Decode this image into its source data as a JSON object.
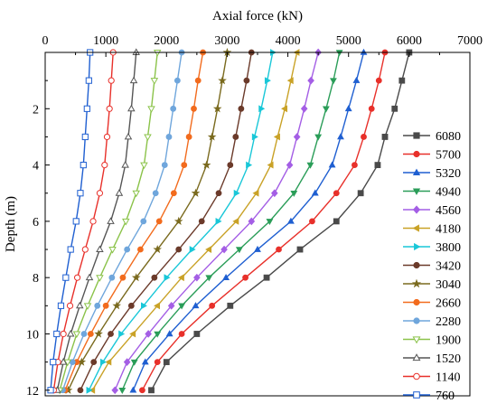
{
  "chart_data": {
    "type": "line",
    "xlabel": "Axial force (kN)",
    "ylabel": "Depth (m)",
    "xlim": [
      0,
      7000
    ],
    "ylim": [
      12.2,
      0
    ],
    "x_axis_position": "top",
    "y_inverted": true,
    "x_ticks": [
      0,
      1000,
      2000,
      3000,
      4000,
      5000,
      6000,
      7000
    ],
    "y_ticks": [
      2,
      4,
      6,
      8,
      10,
      12
    ],
    "depths": [
      0,
      1,
      2,
      3,
      4,
      5,
      6,
      7,
      8,
      9,
      10,
      11,
      12
    ],
    "grid": false,
    "legend_position": "right",
    "series": [
      {
        "name": "6080",
        "color": "#4a4a4a",
        "marker": "square",
        "filled": true,
        "x": [
          6000,
          5880,
          5760,
          5600,
          5480,
          5200,
          4800,
          4200,
          3650,
          3050,
          2500,
          2000,
          1750
        ]
      },
      {
        "name": "5700",
        "color": "#e8302a",
        "marker": "circle",
        "filled": true,
        "x": [
          5600,
          5500,
          5380,
          5250,
          5100,
          4800,
          4400,
          3850,
          3300,
          2750,
          2250,
          1850,
          1600
        ]
      },
      {
        "name": "5320",
        "color": "#1f5fd1",
        "marker": "triangle-up",
        "filled": true,
        "x": [
          5250,
          5130,
          5000,
          4870,
          4730,
          4450,
          4050,
          3500,
          2980,
          2480,
          2050,
          1650,
          1450
        ]
      },
      {
        "name": "4940",
        "color": "#2a9d58",
        "marker": "triangle-down",
        "filled": true,
        "x": [
          4850,
          4750,
          4630,
          4500,
          4370,
          4100,
          3700,
          3200,
          2700,
          2250,
          1850,
          1470,
          1270
        ]
      },
      {
        "name": "4560",
        "color": "#a45ee5",
        "marker": "diamond",
        "filled": true,
        "x": [
          4500,
          4380,
          4270,
          4150,
          4030,
          3780,
          3400,
          2950,
          2500,
          2080,
          1700,
          1350,
          1150
        ]
      },
      {
        "name": "4180",
        "color": "#c9a227",
        "marker": "triangle-left",
        "filled": true,
        "x": [
          4150,
          4050,
          3950,
          3830,
          3720,
          3480,
          3150,
          2700,
          2250,
          1850,
          1450,
          1050,
          780
        ]
      },
      {
        "name": "3800",
        "color": "#19c7d8",
        "marker": "triangle-right",
        "filled": true,
        "x": [
          3750,
          3660,
          3560,
          3450,
          3350,
          3150,
          2850,
          2420,
          2000,
          1620,
          1250,
          950,
          720
        ]
      },
      {
        "name": "3420",
        "color": "#6b3a2a",
        "marker": "circle",
        "filled": true,
        "x": [
          3400,
          3320,
          3230,
          3140,
          3050,
          2860,
          2580,
          2200,
          1800,
          1420,
          1080,
          800,
          580
        ]
      },
      {
        "name": "3040",
        "color": "#7a6a1e",
        "marker": "star",
        "filled": true,
        "x": [
          3000,
          2920,
          2840,
          2750,
          2660,
          2480,
          2200,
          1850,
          1500,
          1180,
          880,
          600,
          380
        ]
      },
      {
        "name": "2660",
        "color": "#f26b1d",
        "marker": "circle",
        "filled": true,
        "x": [
          2600,
          2520,
          2450,
          2370,
          2290,
          2120,
          1880,
          1570,
          1280,
          1000,
          750,
          520,
          330
        ]
      },
      {
        "name": "2280",
        "color": "#6fa6dc",
        "marker": "circle",
        "filled": true,
        "x": [
          2250,
          2180,
          2110,
          2040,
          1970,
          1820,
          1620,
          1350,
          1100,
          860,
          640,
          450,
          290
        ]
      },
      {
        "name": "1900",
        "color": "#8bc34a",
        "marker": "triangle-down",
        "filled": false,
        "x": [
          1850,
          1800,
          1750,
          1690,
          1630,
          1500,
          1330,
          1110,
          900,
          700,
          520,
          370,
          240
        ]
      },
      {
        "name": "1520",
        "color": "#555555",
        "marker": "triangle-up",
        "filled": false,
        "x": [
          1500,
          1460,
          1420,
          1370,
          1320,
          1220,
          1080,
          900,
          730,
          570,
          420,
          300,
          200
        ]
      },
      {
        "name": "1140",
        "color": "#e8302a",
        "marker": "circle",
        "filled": false,
        "x": [
          1120,
          1090,
          1060,
          1020,
          980,
          900,
          790,
          660,
          530,
          410,
          300,
          210,
          140
        ]
      },
      {
        "name": "760",
        "color": "#1f5fd1",
        "marker": "square",
        "filled": false,
        "x": [
          740,
          720,
          690,
          660,
          630,
          580,
          510,
          420,
          340,
          260,
          190,
          130,
          90
        ]
      }
    ]
  }
}
